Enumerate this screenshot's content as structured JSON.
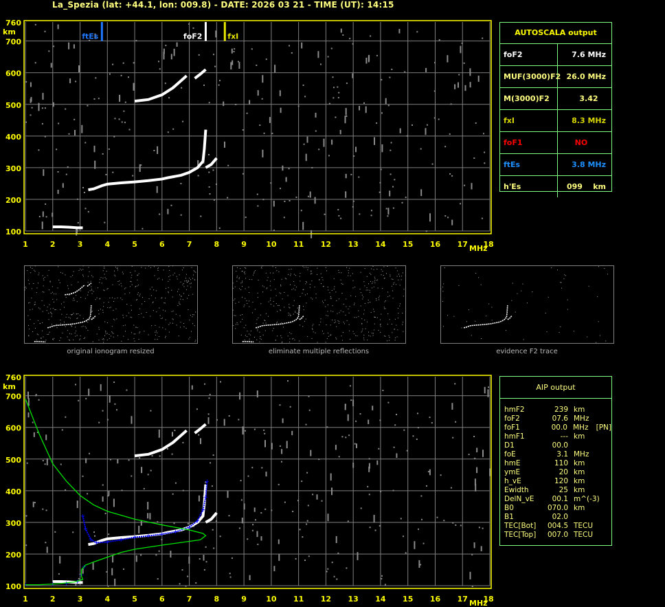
{
  "header": {
    "title": "La_Spezia (lat: +44.1, lon: 009.8) - DATE: 2026 03 21 - TIME (UT): 14:15"
  },
  "colors": {
    "axis": "#ffff00",
    "grid": "#808080",
    "trace": "#ffffff",
    "noise": "#8c8c8c",
    "ftEs": "#1e78ff",
    "fxI": "#e6e600",
    "profile": "#00e600",
    "aip_points": "#0000ff",
    "table_border": "#7fff7f"
  },
  "markers": {
    "ftEs": {
      "label": "ftEs",
      "freq": 3.8
    },
    "foF2": {
      "label": "foF2",
      "freq": 7.6
    },
    "fxI": {
      "label": "fxI",
      "freq": 8.3
    }
  },
  "autoscala": {
    "title": "AUTOSCALA output",
    "rows": [
      {
        "label": "foF2",
        "value": "7.6 MHz",
        "color": "#ffffff"
      },
      {
        "label": "MUF(3000)F2",
        "value": "26.0 MHz",
        "color": "#ffff80"
      },
      {
        "label": "M(3000)F2",
        "value": "3.42   ",
        "color": "#ffff80"
      },
      {
        "label": "fxI",
        "value": "8.3 MHz",
        "color": "#d8d800"
      },
      {
        "label": "foF1",
        "value": "NO       ",
        "color": "#ff0000"
      },
      {
        "label": "ftEs",
        "value": "3.8 MHz",
        "color": "#1e90ff"
      },
      {
        "label": "h'Es",
        "value": "099    km",
        "color": "#ffff80"
      }
    ]
  },
  "thumbnails": [
    {
      "caption": "original ionogram resized"
    },
    {
      "caption": "eliminate multiple reflections"
    },
    {
      "caption": "evidence F2 trace"
    }
  ],
  "aip": {
    "title": "AIP output",
    "rows": [
      [
        "hmF2",
        "239",
        "km",
        ""
      ],
      [
        "foF2",
        "07.6",
        "MHz",
        ""
      ],
      [
        "foF1",
        "00.0",
        "MHz",
        "[PN]"
      ],
      [
        "hmF1",
        "---",
        "km",
        ""
      ],
      [
        "D1",
        "00.0",
        "",
        ""
      ],
      [
        "foE",
        "3.1",
        "MHz",
        ""
      ],
      [
        "hmE",
        "110",
        "km",
        ""
      ],
      [
        "ymE",
        "20",
        "km",
        ""
      ],
      [
        "h_vE",
        "120",
        "km",
        ""
      ],
      [
        "Ewidth",
        "25",
        "km",
        ""
      ],
      [
        "DelN_vE",
        "00.1",
        "m^(-3)",
        ""
      ],
      [
        "B0",
        "070.0",
        "km",
        ""
      ],
      [
        "B1",
        "02.0",
        "",
        ""
      ],
      [
        "TEC[Bot]",
        "004.5",
        "TECU",
        ""
      ],
      [
        "TEC[Top]",
        "007.0",
        "TECU",
        ""
      ]
    ]
  },
  "chart_data": {
    "type": "scatter",
    "xlabel": "MHz",
    "ylabel": "km",
    "xlim": [
      1,
      18
    ],
    "ylim": [
      100,
      760
    ],
    "xticks": [
      "1",
      "2",
      "3",
      "4",
      "5",
      "6",
      "7",
      "8",
      "9",
      "10",
      "11",
      "12",
      "13",
      "14",
      "15",
      "16",
      "17",
      "18"
    ],
    "yticks": [
      "100",
      "200",
      "300",
      "400",
      "500",
      "600",
      "700",
      "760"
    ],
    "grid": true,
    "series": [
      {
        "kind": "E-trace",
        "points": [
          [
            2.0,
            113
          ],
          [
            2.3,
            113
          ],
          [
            2.6,
            112
          ],
          [
            2.9,
            110
          ],
          [
            3.1,
            110
          ]
        ]
      },
      {
        "kind": "F-trace-ordinary",
        "points": [
          [
            3.3,
            230
          ],
          [
            3.5,
            233
          ],
          [
            3.8,
            243
          ],
          [
            4.0,
            248
          ],
          [
            4.5,
            252
          ],
          [
            5.0,
            255
          ],
          [
            5.5,
            259
          ],
          [
            6.0,
            264
          ],
          [
            6.2,
            268
          ],
          [
            6.7,
            276
          ],
          [
            7.0,
            285
          ],
          [
            7.3,
            300
          ],
          [
            7.5,
            320
          ],
          [
            7.55,
            360
          ],
          [
            7.6,
            420
          ]
        ]
      },
      {
        "kind": "F-trace-extraordinary",
        "points": [
          [
            7.6,
            300
          ],
          [
            7.8,
            310
          ],
          [
            8.0,
            330
          ]
        ]
      },
      {
        "kind": "F-trace-second-hop",
        "points": [
          [
            5.0,
            510
          ],
          [
            5.5,
            515
          ],
          [
            6.0,
            530
          ],
          [
            6.4,
            552
          ],
          [
            6.9,
            590
          ]
        ]
      },
      {
        "kind": "F-trace-second-hop-x",
        "points": [
          [
            7.2,
            582
          ],
          [
            7.4,
            595
          ],
          [
            7.6,
            610
          ]
        ]
      },
      {
        "kind": "AIP-points",
        "points": [
          [
            1.0,
            103
          ],
          [
            2.0,
            105
          ],
          [
            2.5,
            108
          ],
          [
            2.9,
            113
          ],
          [
            3.05,
            135
          ],
          [
            3.15,
            160
          ],
          [
            3.1,
            320
          ],
          [
            3.2,
            280
          ],
          [
            3.4,
            245
          ],
          [
            3.6,
            236
          ],
          [
            4.0,
            238
          ],
          [
            4.5,
            245
          ],
          [
            5.0,
            253
          ],
          [
            5.5,
            257
          ],
          [
            6.0,
            263
          ],
          [
            6.5,
            270
          ],
          [
            7.0,
            285
          ],
          [
            7.3,
            305
          ],
          [
            7.5,
            340
          ],
          [
            7.6,
            380
          ],
          [
            7.65,
            430
          ]
        ]
      },
      {
        "kind": "true-height-profile",
        "points": [
          [
            1.0,
            690
          ],
          [
            1.5,
            580
          ],
          [
            2.0,
            485
          ],
          [
            2.5,
            430
          ],
          [
            3.0,
            385
          ],
          [
            3.5,
            355
          ],
          [
            4.0,
            335
          ],
          [
            5.0,
            310
          ],
          [
            6.0,
            292
          ],
          [
            7.0,
            276
          ],
          [
            7.5,
            265
          ],
          [
            7.6,
            258
          ],
          [
            7.4,
            245
          ],
          [
            7.0,
            240
          ],
          [
            6.0,
            228
          ],
          [
            5.0,
            215
          ],
          [
            4.5,
            205
          ],
          [
            4.0,
            190
          ],
          [
            3.5,
            175
          ],
          [
            3.2,
            165
          ],
          [
            3.05,
            150
          ],
          [
            3.05,
            130
          ],
          [
            3.1,
            120
          ],
          [
            2.8,
            112
          ],
          [
            2.2,
            106
          ],
          [
            1.5,
            103
          ],
          [
            1.0,
            103
          ]
        ]
      }
    ]
  }
}
